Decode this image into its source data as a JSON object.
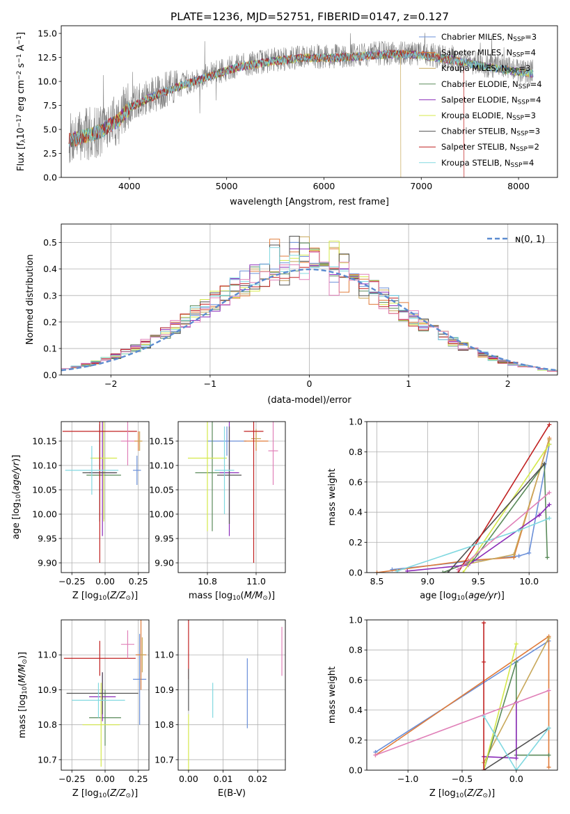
{
  "colors": {
    "Chabrier MILES": "#6a8fd8",
    "Salpeter MILES": "#e07b39",
    "Kroupa MILES": "#c8a85a",
    "Chabrier ELODIE": "#5a8a5a",
    "Salpeter ELODIE": "#8a2ab8",
    "Kroupa ELODIE": "#d4e84a",
    "Chabrier STELIB": "#505050",
    "Salpeter STELIB": "#c02020",
    "Kroupa STELIB": "#80d8e0",
    "Extra": "#e080b8",
    "normal_curve": "#5b8bd0"
  },
  "chart_data": [
    {
      "type": "line",
      "title": "PLATE=1236, MJD=52751, FIBERID=0147, z=0.127",
      "xlabel": "wavelength [Angstrom, rest frame]",
      "ylabel": "Flux [f_λ 10^-17 erg cm^-2 s^-1 A^-1]",
      "xlim": [
        3300,
        8400
      ],
      "ylim": [
        0,
        15.8
      ],
      "xticks": [
        4000,
        5000,
        6000,
        7000,
        8000
      ],
      "yticks": [
        0.0,
        2.5,
        5.0,
        7.5,
        10.0,
        12.5,
        15.0
      ],
      "legend_position": "right",
      "legend": [
        "Chabrier MILES, N_SSP=3",
        "Salpeter MILES, N_SSP=4",
        "Kroupa MILES, N_SSP=3",
        "Chabrier ELODIE, N_SSP=4",
        "Salpeter ELODIE, N_SSP=4",
        "Kroupa ELODIE, N_SSP=3",
        "Chabrier STELIB, N_SSP=3",
        "Salpeter STELIB, N_SSP=2",
        "Kroupa STELIB, N_SSP=4"
      ],
      "continuum": {
        "x": [
          3380,
          3500,
          3700,
          3900,
          4000,
          4200,
          4500,
          4800,
          5100,
          5500,
          5800,
          6100,
          6400,
          6700,
          7000,
          7300,
          7600,
          7900,
          8100
        ],
        "y": [
          4.0,
          4.3,
          4.9,
          6.2,
          7.4,
          8.4,
          9.6,
          10.6,
          11.6,
          12.3,
          12.6,
          12.6,
          12.8,
          13.0,
          12.9,
          12.4,
          11.8,
          11.3,
          11.0
        ]
      },
      "truncations": [
        {
          "model": "Kroupa MILES",
          "x": 6790
        },
        {
          "model": "Salpeter STELIB",
          "x": 7440
        }
      ],
      "grid": false
    },
    {
      "type": "bar",
      "xlabel": "(data-model)/error",
      "ylabel": "Normed distribution",
      "xlim": [
        -2.5,
        2.5
      ],
      "ylim": [
        0,
        0.57
      ],
      "xticks": [
        -2,
        -1,
        0,
        1,
        2
      ],
      "yticks": [
        0.0,
        0.1,
        0.2,
        0.3,
        0.4,
        0.5
      ],
      "legend_label": "N(0,1)",
      "legend_position": "top-right",
      "bin_width": 0.1,
      "grid": true
    },
    {
      "type": "scatter",
      "xlabel": "Z [log10(Z/Z_sun)]",
      "ylabel": "age [log10(age/yr)]",
      "xlim": [
        -0.33,
        0.33
      ],
      "ylim": [
        9.88,
        10.19
      ],
      "xticks": [
        -0.25,
        0.0,
        0.25
      ],
      "yticks": [
        9.9,
        9.95,
        10.0,
        10.05,
        10.1,
        10.15
      ],
      "points": [
        {
          "model": "Chabrier MILES",
          "x": 0.24,
          "y": 10.09,
          "xerr": 0.03,
          "yerr": 0.03
        },
        {
          "model": "Salpeter MILES",
          "x": 0.25,
          "y": 10.15,
          "xerr": 0.03,
          "yerr": 0.02
        },
        {
          "model": "Kroupa MILES",
          "x": 0.26,
          "y": 10.15,
          "xerr": 0.02,
          "yerr": 0.02
        },
        {
          "model": "Chabrier ELODIE",
          "x": -0.01,
          "y": 10.08,
          "xerr": 0.13,
          "yerr": 0.09
        },
        {
          "model": "Salpeter ELODIE",
          "x": -0.02,
          "y": 10.085,
          "xerr": 0.1,
          "yerr": 0.13
        },
        {
          "model": "Kroupa ELODIE",
          "x": -0.01,
          "y": 10.115,
          "xerr": 0.1,
          "yerr": 0.13
        },
        {
          "model": "Chabrier STELIB",
          "x": -0.04,
          "y": 10.085,
          "xerr": 0.13,
          "yerr": 0.1
        },
        {
          "model": "Salpeter STELIB",
          "x": -0.04,
          "y": 10.17,
          "xerr": 0.28,
          "yerr": 0.27
        },
        {
          "model": "Kroupa STELIB",
          "x": -0.1,
          "y": 10.09,
          "xerr": 0.2,
          "yerr": 0.05
        },
        {
          "model": "Extra",
          "x": 0.17,
          "y": 10.15,
          "xerr": 0.05,
          "yerr": 0.05
        }
      ],
      "grid": true
    },
    {
      "type": "scatter",
      "xlabel": "mass [log10(M/M_sun)]",
      "ylabel": "",
      "xlim": [
        10.68,
        11.12
      ],
      "ylim": [
        9.88,
        10.19
      ],
      "xticks": [
        10.8,
        11.0
      ],
      "yticks": [
        9.9,
        9.95,
        10.0,
        10.05,
        10.1,
        10.15
      ],
      "points": [
        {
          "model": "Chabrier MILES",
          "x": 10.88,
          "y": 10.15,
          "xerr": 0.08,
          "yerr": 0.03
        },
        {
          "model": "Salpeter MILES",
          "x": 11.0,
          "y": 10.15,
          "xerr": 0.05,
          "yerr": 0.02
        },
        {
          "model": "Kroupa MILES",
          "x": 11.0,
          "y": 10.155,
          "xerr": 0.02,
          "yerr": 0.02
        },
        {
          "model": "Chabrier ELODIE",
          "x": 10.82,
          "y": 10.085,
          "xerr": 0.07,
          "yerr": 0.12
        },
        {
          "model": "Salpeter ELODIE",
          "x": 10.89,
          "y": 10.085,
          "xerr": 0.04,
          "yerr": 0.13
        },
        {
          "model": "Kroupa ELODIE",
          "x": 10.8,
          "y": 10.115,
          "xerr": 0.08,
          "yerr": 0.15
        },
        {
          "model": "Chabrier STELIB",
          "x": 10.89,
          "y": 10.08,
          "xerr": 0.05,
          "yerr": 0.1
        },
        {
          "model": "Salpeter STELIB",
          "x": 10.99,
          "y": 10.17,
          "xerr": 0.04,
          "yerr": 0.27
        },
        {
          "model": "Kroupa STELIB",
          "x": 10.87,
          "y": 10.09,
          "xerr": 0.04,
          "yerr": 0.09
        },
        {
          "model": "Extra",
          "x": 11.07,
          "y": 10.13,
          "xerr": 0.02,
          "yerr": 0.07
        }
      ],
      "grid": true
    },
    {
      "type": "line",
      "xlabel": "age [log10(age/yr)]",
      "ylabel": "mass weight",
      "xlim": [
        8.4,
        10.28
      ],
      "ylim": [
        0.0,
        1.0
      ],
      "xticks": [
        8.5,
        9.0,
        9.5,
        10.0
      ],
      "yticks": [
        0.0,
        0.2,
        0.4,
        0.6,
        0.8,
        1.0
      ],
      "series": [
        {
          "model": "Chabrier MILES",
          "x": [
            8.65,
            9.9,
            10.0,
            10.2
          ],
          "y": [
            0.02,
            0.11,
            0.13,
            0.85
          ]
        },
        {
          "model": "Salpeter MILES",
          "x": [
            8.5,
            9.4,
            9.85,
            10.2
          ],
          "y": [
            0.0,
            0.08,
            0.1,
            0.89
          ]
        },
        {
          "model": "Kroupa MILES",
          "x": [
            9.35,
            9.85,
            10.2
          ],
          "y": [
            0.05,
            0.12,
            0.88
          ]
        },
        {
          "model": "Chabrier ELODIE",
          "x": [
            9.15,
            9.45,
            10.15,
            10.18
          ],
          "y": [
            0.0,
            0.08,
            0.72,
            0.1
          ]
        },
        {
          "model": "Salpeter ELODIE",
          "x": [
            8.8,
            9.4,
            10.1,
            10.2
          ],
          "y": [
            0.01,
            0.05,
            0.38,
            0.45
          ]
        },
        {
          "model": "Kroupa ELODIE",
          "x": [
            9.35,
            10.2
          ],
          "y": [
            0.0,
            0.85
          ]
        },
        {
          "model": "Chabrier STELIB",
          "x": [
            9.2,
            10.15
          ],
          "y": [
            0.0,
            0.72
          ]
        },
        {
          "model": "Salpeter STELIB",
          "x": [
            9.3,
            10.2
          ],
          "y": [
            0.0,
            0.98
          ]
        },
        {
          "model": "Kroupa STELIB",
          "x": [
            8.7,
            9.9,
            10.2
          ],
          "y": [
            0.01,
            0.28,
            0.36
          ]
        },
        {
          "model": "Extra",
          "x": [
            9.3,
            10.2
          ],
          "y": [
            0.02,
            0.53
          ]
        }
      ],
      "grid": true
    },
    {
      "type": "scatter",
      "xlabel": "Z [log10(Z/Z_sun)]",
      "ylabel": "mass [log10(M/M_sun)]",
      "xlim": [
        -0.33,
        0.33
      ],
      "ylim": [
        10.67,
        11.1
      ],
      "xticks": [
        -0.25,
        0.0,
        0.25
      ],
      "yticks": [
        10.7,
        10.8,
        10.9,
        11.0
      ],
      "points": [
        {
          "model": "Chabrier MILES",
          "x": 0.26,
          "y": 10.93,
          "xerr": 0.05,
          "yerr": 0.13
        },
        {
          "model": "Salpeter MILES",
          "x": 0.27,
          "y": 11.0,
          "xerr": 0.04,
          "yerr": 0.1
        },
        {
          "model": "Kroupa MILES",
          "x": 0.28,
          "y": 11.0,
          "xerr": 0.02,
          "yerr": 0.05
        },
        {
          "model": "Chabrier ELODIE",
          "x": 0.0,
          "y": 10.82,
          "xerr": 0.12,
          "yerr": 0.08
        },
        {
          "model": "Salpeter ELODIE",
          "x": -0.02,
          "y": 10.88,
          "xerr": 0.1,
          "yerr": 0.07
        },
        {
          "model": "Kroupa ELODIE",
          "x": -0.03,
          "y": 10.8,
          "xerr": 0.14,
          "yerr": 0.12
        },
        {
          "model": "Chabrier STELIB",
          "x": -0.02,
          "y": 10.89,
          "xerr": 0.27,
          "yerr": 0.06
        },
        {
          "model": "Salpeter STELIB",
          "x": -0.04,
          "y": 10.99,
          "xerr": 0.27,
          "yerr": 0.05
        },
        {
          "model": "Kroupa STELIB",
          "x": -0.05,
          "y": 10.87,
          "xerr": 0.2,
          "yerr": 0.05
        },
        {
          "model": "Extra",
          "x": 0.17,
          "y": 11.03,
          "xerr": 0.05,
          "yerr": 0.04
        }
      ],
      "grid": true
    },
    {
      "type": "scatter",
      "xlabel": "E(B-V)",
      "ylabel": "",
      "xlim": [
        -0.003,
        0.028
      ],
      "ylim": [
        10.67,
        11.1
      ],
      "xticks": [
        0.0,
        0.01,
        0.02
      ],
      "yticks": [
        10.7,
        10.8,
        10.9,
        11.0
      ],
      "points": [
        {
          "model": "Salpeter STELIB",
          "x": 0.0,
          "y": 11.03,
          "yerr": 0.1
        },
        {
          "model": "Chabrier STELIB",
          "x": 0.0,
          "y": 10.9,
          "yerr": 0.06
        },
        {
          "model": "Kroupa ELODIE",
          "x": 0.0,
          "y": 10.75,
          "yerr": 0.08
        },
        {
          "model": "Kroupa STELIB",
          "x": 0.007,
          "y": 10.87,
          "yerr": 0.05
        },
        {
          "model": "Chabrier MILES",
          "x": 0.017,
          "y": 10.89,
          "yerr": 0.1
        },
        {
          "model": "Extra",
          "x": 0.027,
          "y": 11.01,
          "yerr": 0.07
        }
      ],
      "grid": true
    },
    {
      "type": "line",
      "xlabel": "Z [log10(Z/Z_sun)]",
      "ylabel": "mass weight",
      "xlim": [
        -1.38,
        0.38
      ],
      "ylim": [
        0.0,
        1.0
      ],
      "xticks": [
        -1.0,
        -0.5,
        0.0
      ],
      "yticks": [
        0.0,
        0.2,
        0.4,
        0.6,
        0.8,
        1.0
      ],
      "series": [
        {
          "model": "Chabrier MILES",
          "x": [
            -1.3,
            0.3
          ],
          "y": [
            0.12,
            0.86
          ]
        },
        {
          "model": "Salpeter MILES",
          "x": [
            -1.3,
            0.3,
            0.3
          ],
          "y": [
            0.1,
            0.89,
            0.02
          ]
        },
        {
          "model": "Kroupa MILES",
          "x": [
            -0.3,
            0.3
          ],
          "y": [
            0.05,
            0.88
          ]
        },
        {
          "model": "Chabrier ELODIE",
          "x": [
            -0.3,
            0.0,
            0.0,
            0.3
          ],
          "y": [
            0.0,
            0.72,
            0.1,
            0.1
          ]
        },
        {
          "model": "Salpeter ELODIE",
          "x": [
            -0.3,
            0.0,
            0.0
          ],
          "y": [
            0.09,
            0.08,
            0.45
          ]
        },
        {
          "model": "Kroupa ELODIE",
          "x": [
            -0.3,
            0.0
          ],
          "y": [
            0.0,
            0.84
          ]
        },
        {
          "model": "Chabrier STELIB",
          "x": [
            -0.3,
            0.3
          ],
          "y": [
            0.0,
            0.28
          ]
        },
        {
          "model": "Salpeter STELIB",
          "x": [
            -0.3,
            -0.3,
            -0.3
          ],
          "y": [
            0.0,
            0.72,
            0.98
          ]
        },
        {
          "model": "Kroupa STELIB",
          "x": [
            -0.3,
            0.0,
            0.3
          ],
          "y": [
            0.36,
            0.0,
            0.28
          ]
        },
        {
          "model": "Extra",
          "x": [
            -1.3,
            0.3
          ],
          "y": [
            0.1,
            0.53
          ]
        }
      ],
      "grid": true
    }
  ]
}
